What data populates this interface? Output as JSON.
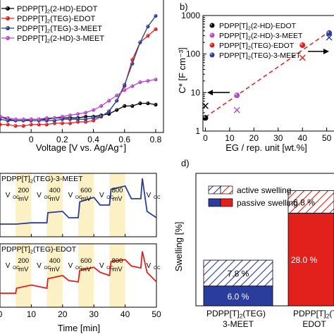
{
  "chart_data": [
    {
      "panel": "a",
      "type": "line",
      "title": "",
      "xlabel": "Voltage [V vs. Ag/Ag⁺]",
      "ylabel": "",
      "xlim": [
        -0.2,
        0.85
      ],
      "ylim": [
        0,
        1
      ],
      "x_ticks": [
        "0",
        "0.2",
        "0.4",
        "0.6",
        "0.8"
      ],
      "grid": false,
      "legend": "top-left",
      "series": [
        {
          "name": "PDPP[T]₂(2-HD)-EDOT",
          "color": "#000000",
          "x": [
            -0.2,
            -0.15,
            -0.1,
            -0.05,
            0,
            0.05,
            0.1,
            0.15,
            0.2,
            0.25,
            0.3,
            0.35,
            0.4,
            0.45,
            0.5,
            0.55,
            0.6,
            0.65,
            0.7,
            0.75,
            0.8
          ],
          "y": [
            0.12,
            0.1,
            0.09,
            0.09,
            0.1,
            0.1,
            0.1,
            0.11,
            0.11,
            0.11,
            0.11,
            0.12,
            0.12,
            0.13,
            0.14,
            0.17,
            0.2,
            0.2,
            0.22,
            0.22,
            0.21
          ]
        },
        {
          "name": "PDPP[T]₂(TEG)-EDOT",
          "color": "#e3211c",
          "x": [
            -0.2,
            -0.15,
            -0.1,
            -0.05,
            0,
            0.05,
            0.1,
            0.15,
            0.2,
            0.25,
            0.3,
            0.35,
            0.4,
            0.45,
            0.5,
            0.55,
            0.6,
            0.65,
            0.7,
            0.75,
            0.8
          ],
          "y": [
            0.06,
            0.06,
            0.05,
            0.05,
            0.06,
            0.06,
            0.06,
            0.07,
            0.07,
            0.07,
            0.08,
            0.08,
            0.09,
            0.12,
            0.16,
            0.24,
            0.35,
            0.55,
            0.68,
            0.73,
            0.78
          ]
        },
        {
          "name": "PDPP[T]₂(TEG)-3-MEET",
          "color": "#2a3d9c",
          "x": [
            -0.2,
            -0.15,
            -0.1,
            -0.05,
            0,
            0.05,
            0.1,
            0.15,
            0.2,
            0.25,
            0.3,
            0.35,
            0.4,
            0.45,
            0.5,
            0.55,
            0.6,
            0.65,
            0.7,
            0.75,
            0.8
          ],
          "y": [
            0.1,
            0.09,
            0.09,
            0.09,
            0.09,
            0.09,
            0.09,
            0.09,
            0.1,
            0.1,
            0.1,
            0.1,
            0.11,
            0.12,
            0.16,
            0.24,
            0.36,
            0.52,
            0.68,
            0.8,
            0.88
          ]
        },
        {
          "name": "PDPP[T]₂(2-HD)-3-MEET",
          "color": "#b44bc8",
          "x": [
            -0.2,
            -0.15,
            -0.1,
            -0.05,
            0,
            0.05,
            0.1,
            0.15,
            0.2,
            0.25,
            0.3,
            0.35,
            0.4,
            0.45,
            0.5,
            0.55,
            0.6,
            0.65,
            0.7,
            0.75,
            0.8
          ],
          "y": [
            0.12,
            0.11,
            0.1,
            0.1,
            0.1,
            0.1,
            0.11,
            0.11,
            0.12,
            0.13,
            0.14,
            0.15,
            0.17,
            0.2,
            0.24,
            0.28,
            0.32,
            0.35,
            0.38,
            0.39,
            0.4
          ]
        }
      ]
    },
    {
      "panel": "b",
      "type": "scatter",
      "title": "",
      "xlabel": "EG / rep. unit [wt.%]",
      "ylabel": "C* [F cm⁻³]",
      "xlim": [
        -1,
        53
      ],
      "ylim": [
        1,
        1000
      ],
      "yscale": "log",
      "x_ticks": [
        0,
        10,
        20,
        30,
        40,
        50
      ],
      "y_ticks": [
        "1",
        "10",
        "100",
        "1000"
      ],
      "legend": "top-left",
      "series": [
        {
          "name": "PDPP[T]₂(2-HD)-EDOT",
          "color": "#000000",
          "marker": "circle",
          "x": [
            0
          ],
          "y": [
            2.2
          ]
        },
        {
          "name": "PDPP[T]₂(2-HD)-3-MEET",
          "color": "#b44bc8",
          "marker": "circle",
          "x": [
            13
          ],
          "y": [
            8.5
          ]
        },
        {
          "name": "PDPP[T]₂(TEG)-EDOT",
          "color": "#e3211c",
          "marker": "circle",
          "x": [
            40
          ],
          "y": [
            170
          ]
        },
        {
          "name": "PDPP[T]₂(TEG)-3-MEET",
          "color": "#2a3d9c",
          "marker": "circle",
          "x": [
            51
          ],
          "y": [
            350
          ]
        },
        {
          "name": "",
          "color": "#000000",
          "marker": "cross",
          "x": [
            0
          ],
          "y": [
            4.5
          ]
        },
        {
          "name": "",
          "color": "#b44bc8",
          "marker": "cross",
          "x": [
            13
          ],
          "y": [
            3.5
          ]
        },
        {
          "name": "",
          "color": "#e3211c",
          "marker": "cross",
          "x": [
            40
          ],
          "y": [
            80
          ]
        },
        {
          "name": "",
          "color": "#2a3d9c",
          "marker": "cross",
          "x": [
            51
          ],
          "y": [
            270
          ]
        }
      ],
      "trend": {
        "color": "#e3211c",
        "x": [
          0,
          51
        ],
        "y": [
          2.3,
          380
        ]
      }
    },
    {
      "panel": "c",
      "type": "line",
      "title": "PDPP[T]₂(TEG)-3-MEET",
      "xlim": [
        0,
        50
      ],
      "color": "#2a3d9c",
      "steps": [
        "Vₒc",
        "200 mV",
        "Vₒc",
        "400 mV",
        "Vₒc",
        "600 mV",
        "Vₒc",
        "800 mV",
        "Vₒc"
      ],
      "x": [
        0,
        5,
        5.3,
        10,
        15,
        15.3,
        20,
        22,
        25,
        25.5,
        30,
        32,
        35,
        35.5,
        40,
        42,
        45,
        45.5,
        47,
        50
      ],
      "y": [
        0.2,
        0.2,
        0.2,
        0.22,
        0.22,
        0.38,
        0.4,
        0.3,
        0.3,
        0.55,
        0.62,
        0.5,
        0.5,
        0.75,
        0.8,
        0.6,
        0.6,
        0.92,
        0.4,
        0.3
      ]
    },
    {
      "panel": "c2",
      "type": "line",
      "title": "PDPP[T]₂(TEG)-EDOT",
      "xlabel": "Time [min]",
      "xlim": [
        0,
        50
      ],
      "x_ticks": [
        "0",
        "10",
        "20",
        "30",
        "40",
        "50"
      ],
      "color": "#e3211c",
      "steps": [
        "Vₒc",
        "200 mV",
        "Vₒc",
        "400 mV",
        "Vₒc",
        "600 mV",
        "Vₒc",
        "800 mV",
        "Vₒc"
      ],
      "x": [
        0,
        5,
        5.3,
        10,
        15,
        15.3,
        20,
        22,
        25,
        25.5,
        30,
        32,
        35,
        35.5,
        40,
        42,
        45,
        45.5,
        47,
        50
      ],
      "y": [
        0.22,
        0.22,
        0.3,
        0.35,
        0.3,
        0.45,
        0.5,
        0.42,
        0.4,
        0.58,
        0.63,
        0.55,
        0.5,
        0.72,
        0.75,
        0.65,
        0.62,
        0.88,
        0.55,
        0.4
      ]
    },
    {
      "panel": "d",
      "type": "bar",
      "title": "",
      "ylabel": "Swelling [%]",
      "categories": [
        "PDPP[T]₂(TEG)\n3-MEET",
        "PDPP[T]₂(TEG)\nEDOT"
      ],
      "legend": "top-left",
      "series": [
        {
          "name": "passive swelling",
          "values": [
            6.0,
            28.0
          ],
          "labels": [
            "6.0 %",
            "28.0 %"
          ]
        },
        {
          "name": "active swelling",
          "values": [
            7.8,
            6.8
          ],
          "labels": [
            "7.8 %",
            "6.8 %"
          ]
        }
      ],
      "colors": [
        "#2a3d9c",
        "#e3211c"
      ],
      "ylim": [
        0,
        40
      ]
    }
  ],
  "labels": {
    "b": "b)",
    "d": "d)",
    "a_xlabel": "Voltage [V vs. Ag/Ag⁺]",
    "b_xlabel": "EG / rep. unit [wt.%]",
    "b_ylabel": "C* [F cm⁻³]",
    "c_xlabel": "Time [min]",
    "d_ylabel": "Swelling [%]",
    "d_legend_active": "active swelling",
    "d_legend_passive": "passive swelling"
  }
}
